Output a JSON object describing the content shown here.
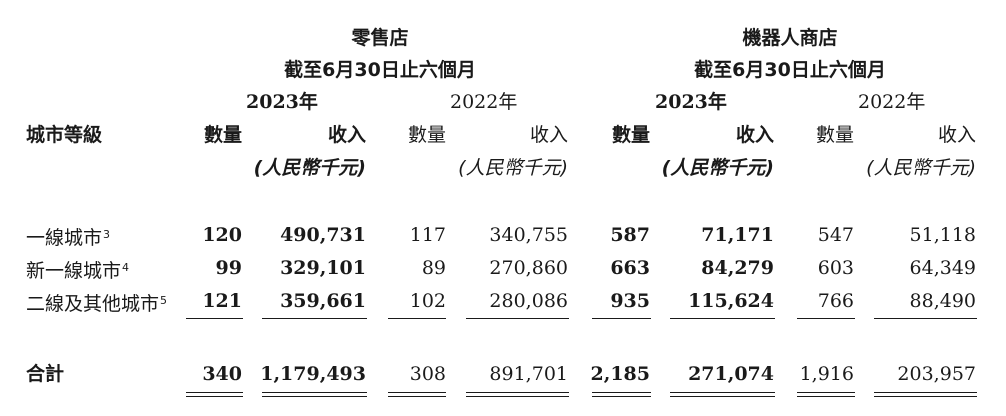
{
  "header": {
    "groups": [
      {
        "title": "零售店",
        "subtitle": "截至6月30日止六個月",
        "year_current": "2023年",
        "year_prior": "2022年"
      },
      {
        "title": "機器人商店",
        "subtitle": "截至6月30日止六個月",
        "year_current": "2023年",
        "year_prior": "2022年"
      }
    ],
    "city_tier_label": "城市等級",
    "quantity_label": "數量",
    "revenue_label": "收入",
    "unit_label": "(人民幣千元)"
  },
  "rows": [
    {
      "label": "一線城市",
      "note": "3",
      "values": [
        "120",
        "490,731",
        "117",
        "340,755",
        "587",
        "71,171",
        "547",
        "51,118"
      ]
    },
    {
      "label": "新一線城市",
      "note": "4",
      "values": [
        "99",
        "329,101",
        "89",
        "270,860",
        "663",
        "84,279",
        "603",
        "64,349"
      ]
    },
    {
      "label": "二線及其他城市",
      "note": "5",
      "values": [
        "121",
        "359,661",
        "102",
        "280,086",
        "935",
        "115,624",
        "766",
        "88,490"
      ]
    }
  ],
  "total": {
    "label": "合計",
    "values": [
      "340",
      "1,179,493",
      "308",
      "891,701",
      "2,185",
      "271,074",
      "1,916",
      "203,957"
    ]
  }
}
